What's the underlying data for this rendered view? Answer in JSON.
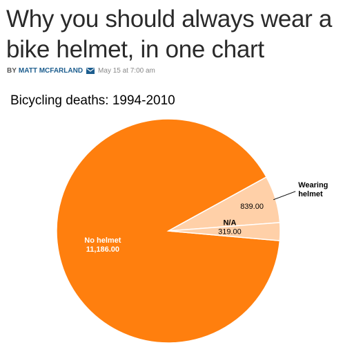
{
  "article": {
    "headline": "Why you should always wear a bike helmet, in one chart",
    "byline_prefix": "BY",
    "author": "MATT MCFARLAND",
    "date": "May 15 at 7:00 am"
  },
  "chart_data": {
    "type": "pie",
    "title": "Bicycling deaths: 1994-2010",
    "slices": [
      {
        "name": "No helmet",
        "value_label": "11,186.00",
        "value": 11186,
        "color": "#ff7f0e",
        "label_color": "#ffffff",
        "label_weight": "bold"
      },
      {
        "name": "Wearing helmet",
        "value_label": "839.00",
        "value": 839,
        "color": "#ffd0a8",
        "label_color": "#000000",
        "label_weight": "bold"
      },
      {
        "name": "N/A",
        "value_label": "319.00",
        "value": 319,
        "color": "#ffd0a8",
        "label_color": "#000000",
        "label_weight": "bold"
      }
    ],
    "slice_border_color": "#ffffff",
    "legend": "none"
  }
}
